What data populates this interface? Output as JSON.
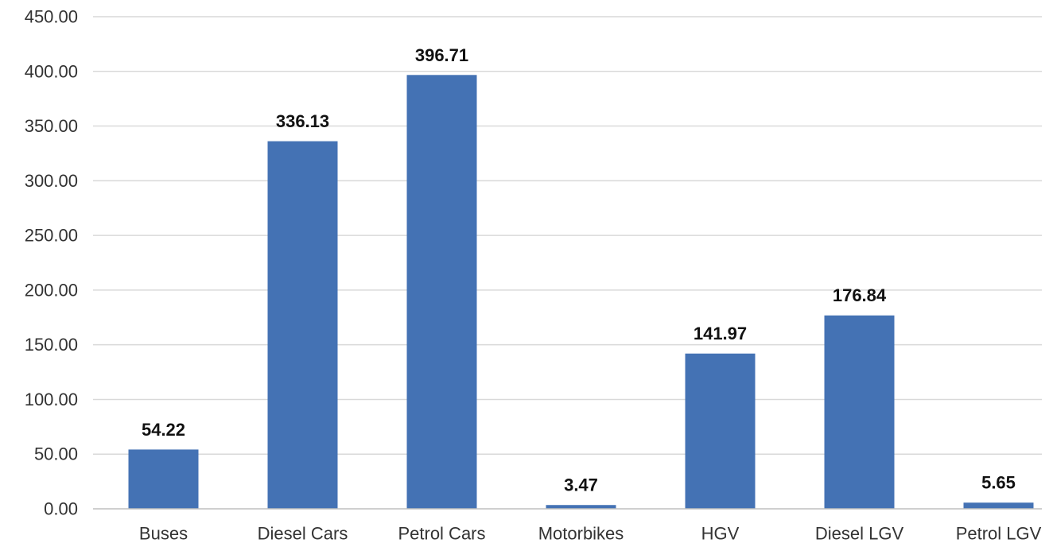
{
  "chart_data": {
    "type": "bar",
    "title": "",
    "xlabel": "",
    "ylabel": "",
    "categories": [
      "Buses",
      "Diesel Cars",
      "Petrol Cars",
      "Motorbikes",
      "HGV",
      "Diesel LGV",
      "Petrol LGV"
    ],
    "values": [
      54.22,
      336.13,
      396.71,
      3.47,
      141.97,
      176.84,
      5.65
    ],
    "data_labels": [
      "54.22",
      "336.13",
      "396.71",
      "3.47",
      "141.97",
      "176.84",
      "5.65"
    ],
    "ylim": [
      0,
      450
    ],
    "yticks": [
      0,
      50,
      100,
      150,
      200,
      250,
      300,
      350,
      400,
      450
    ],
    "ytick_labels": [
      "0.00",
      "50.00",
      "100.00",
      "150.00",
      "200.00",
      "250.00",
      "300.00",
      "350.00",
      "400.00",
      "450.00"
    ],
    "grid": true,
    "legend": "none",
    "bar_color": "#4472b4"
  }
}
